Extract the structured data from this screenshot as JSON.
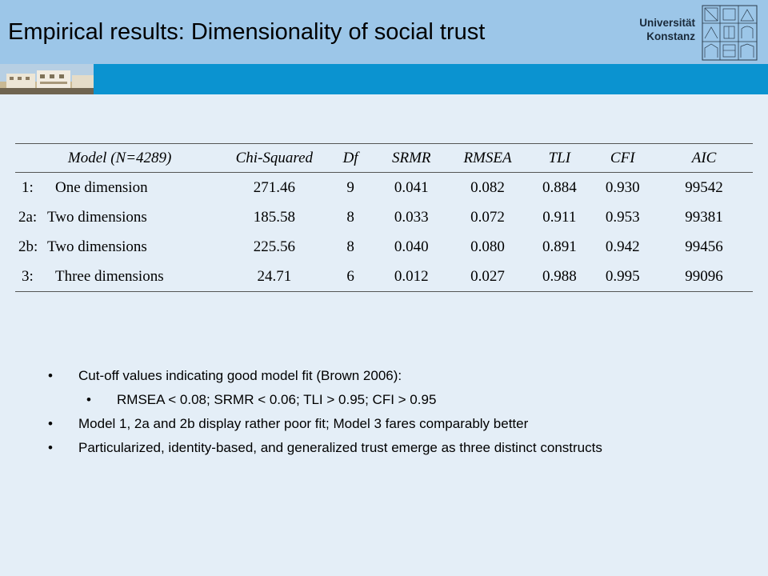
{
  "header": {
    "title": "Empirical results: Dimensionality of social trust",
    "logo_line1": "Universität",
    "logo_line2": "Konstanz",
    "logo_icon": "university-building-emblem"
  },
  "table": {
    "columns": [
      "Model (N=4289)",
      "Chi-Squared",
      "Df",
      "SRMR",
      "RMSEA",
      "TLI",
      "CFI",
      "AIC"
    ],
    "rows": [
      {
        "idx": "1:",
        "model": "One dimension",
        "chi": "271.46",
        "df": "9",
        "srmr": "0.041",
        "rmsea": "0.082",
        "tli": "0.884",
        "cfi": "0.930",
        "aic": "99542"
      },
      {
        "idx": "2a:",
        "model": "Two dimensions",
        "chi": "185.58",
        "df": "8",
        "srmr": "0.033",
        "rmsea": "0.072",
        "tli": "0.911",
        "cfi": "0.953",
        "aic": "99381"
      },
      {
        "idx": "2b:",
        "model": "Two dimensions",
        "chi": "225.56",
        "df": "8",
        "srmr": "0.040",
        "rmsea": "0.080",
        "tli": "0.891",
        "cfi": "0.942",
        "aic": "99456"
      },
      {
        "idx": "3:",
        "model": "Three dimensions",
        "chi": "24.71",
        "df": "6",
        "srmr": "0.012",
        "rmsea": "0.027",
        "tli": "0.988",
        "cfi": "0.995",
        "aic": "99096"
      }
    ]
  },
  "bullets": {
    "b1": "Cut-off values indicating good model fit (Brown 2006):",
    "b1_sub": "RMSEA < 0.08; SRMR < 0.06; TLI > 0.95; CFI > 0.95",
    "b2": "Model 1, 2a and 2b display rather poor fit; Model 3 fares comparably better",
    "b3": "Particularized, identity-based, and generalized trust emerge as three distinct constructs"
  }
}
